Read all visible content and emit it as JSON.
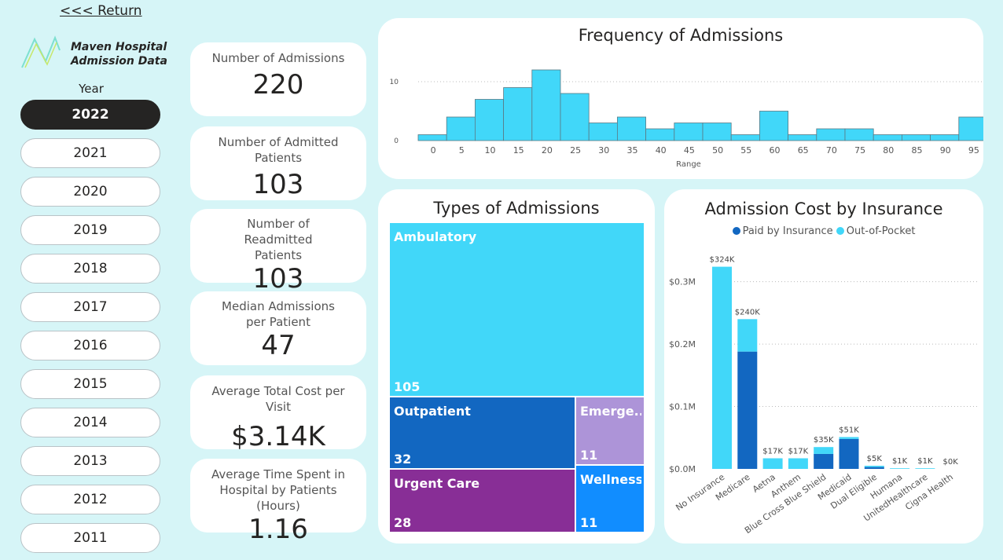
{
  "return_label": "<<< Return",
  "brand": {
    "line1": "Maven Hospital",
    "line2": "Admission Data"
  },
  "year_filter": {
    "label": "Year",
    "selected": "2022",
    "options": [
      "2022",
      "2021",
      "2020",
      "2019",
      "2018",
      "2017",
      "2016",
      "2015",
      "2014",
      "2013",
      "2012",
      "2011"
    ]
  },
  "kpis": [
    {
      "label": "Number of Admissions",
      "value": "220"
    },
    {
      "label": "Number of Admitted Patients",
      "value": "103"
    },
    {
      "label": "Number of Readmitted Patients",
      "value": "103"
    },
    {
      "label": "Median Admissions per Patient",
      "value": "47"
    },
    {
      "label": "Average Total Cost per Visit",
      "value": "$3.14K"
    },
    {
      "label": "Average Time Spent in Hospital by Patients (Hours)",
      "value": "1.16"
    }
  ],
  "colors": {
    "cyan": "#41d7f9",
    "blue": "#1267c1",
    "purple": "#882e96",
    "lavender": "#ad94d8",
    "wellness": "#118dff"
  },
  "chart_data": [
    {
      "type": "bar",
      "title": "Frequency of Admissions",
      "xlabel": "Range",
      "ylabel": "",
      "categories": [
        "0",
        "5",
        "10",
        "15",
        "20",
        "25",
        "30",
        "35",
        "40",
        "45",
        "50",
        "55",
        "60",
        "65",
        "70",
        "75",
        "80",
        "85",
        "90",
        "95"
      ],
      "values": [
        1,
        4,
        7,
        9,
        12,
        8,
        3,
        4,
        2,
        3,
        3,
        1,
        5,
        1,
        2,
        2,
        1,
        1,
        1,
        4
      ],
      "y_ticks": [
        0,
        10
      ],
      "ylim": [
        0,
        12
      ],
      "grid": true
    },
    {
      "type": "table",
      "title": "Types of Admissions",
      "categories": [
        "Ambulatory",
        "Outpatient",
        "Emerge...",
        "Urgent Care",
        "Wellness"
      ],
      "values": [
        105,
        32,
        11,
        28,
        11
      ]
    },
    {
      "type": "bar",
      "title": "Admission Cost by Insurance",
      "stacked": true,
      "legend": "top-center",
      "categories": [
        "No Insurance",
        "Medicare",
        "Aetna",
        "Anthem",
        "Blue Cross Blue Shield",
        "Medicaid",
        "Dual Eligible",
        "Humana",
        "UnitedHealthcare",
        "Cigna Health"
      ],
      "series": [
        {
          "name": "Paid by Insurance",
          "values": [
            0,
            188000,
            0,
            0,
            24000,
            48000,
            3000,
            0,
            0,
            0
          ]
        },
        {
          "name": "Out-of-Pocket",
          "values": [
            324000,
            52000,
            17000,
            17000,
            11000,
            3000,
            2000,
            1000,
            1000,
            0
          ]
        }
      ],
      "totals": [
        "$324K",
        "$240K",
        "$17K",
        "$17K",
        "$35K",
        "$51K",
        "$5K",
        "$1K",
        "$1K",
        "$0K"
      ],
      "y_ticks": [
        "$0.0M",
        "$0.1M",
        "$0.2M",
        "$0.3M"
      ],
      "ylim": [
        0,
        360000
      ],
      "grid": true
    }
  ]
}
